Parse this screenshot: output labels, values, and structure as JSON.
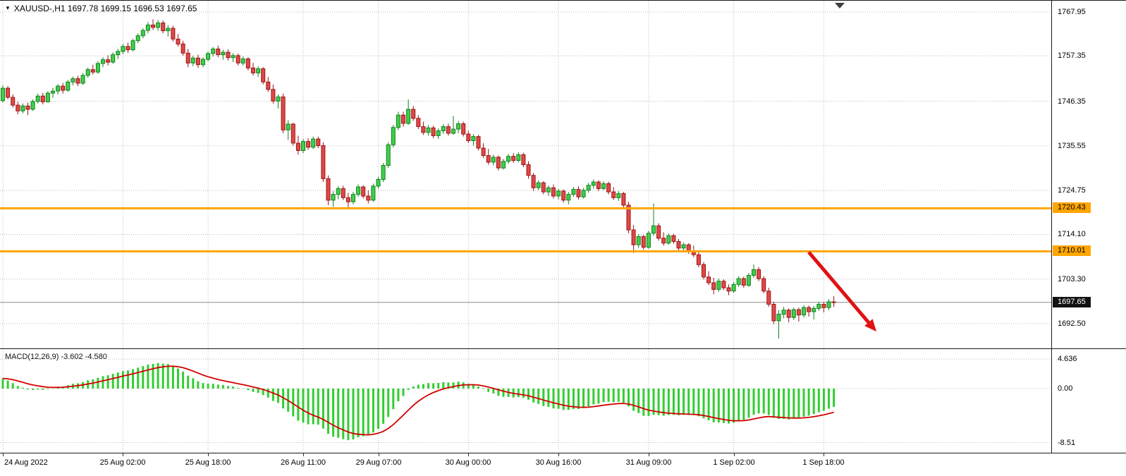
{
  "symbol_bar": {
    "dropdown_icon": "▼",
    "text": "XAUUSD-,H1 1697.78 1699.15 1696.53 1697.65"
  },
  "macd_panel": {
    "label": "MACD(12,26,9) -3.602 -4.580"
  },
  "chart_data": {
    "type": "candlestick",
    "symbol": "XAUUSD-",
    "timeframe": "H1",
    "current_bar": {
      "open": 1697.78,
      "high": 1699.15,
      "low": 1696.53,
      "close": 1697.65
    },
    "price_axis_ticks": [
      1767.95,
      1757.35,
      1746.35,
      1735.55,
      1724.75,
      1714.1,
      1703.3,
      1692.5
    ],
    "price_axis_range": [
      1688.0,
      1771.0
    ],
    "grid": true,
    "horizontal_levels": [
      {
        "price": 1720.43,
        "label": "1720.43",
        "color": "#FFA500"
      },
      {
        "price": 1710.01,
        "label": "1710.01",
        "color": "#FFA500"
      }
    ],
    "current_price_label": {
      "price": 1697.65,
      "label": "1697.65"
    },
    "time_labels": [
      {
        "i": 0,
        "text": "24 Aug 2022"
      },
      {
        "i": 24,
        "text": "25 Aug 02:00"
      },
      {
        "i": 41,
        "text": "25 Aug 18:00"
      },
      {
        "i": 60,
        "text": "26 Aug 11:00"
      },
      {
        "i": 75,
        "text": "29 Aug 07:00"
      },
      {
        "i": 93,
        "text": "30 Aug 00:00"
      },
      {
        "i": 111,
        "text": "30 Aug 16:00"
      },
      {
        "i": 129,
        "text": "31 Aug 09:00"
      },
      {
        "i": 146,
        "text": "1 Sep 02:00"
      },
      {
        "i": 164,
        "text": "1 Sep 18:00"
      }
    ],
    "candles": [
      [
        1746.5,
        1750.2,
        1746.0,
        1749.5
      ],
      [
        1749.5,
        1750.0,
        1746.8,
        1747.3
      ],
      [
        1747.3,
        1748.0,
        1744.8,
        1745.4
      ],
      [
        1745.4,
        1746.2,
        1743.2,
        1744.0
      ],
      [
        1744.0,
        1745.8,
        1743.4,
        1745.2
      ],
      [
        1745.2,
        1746.0,
        1743.0,
        1744.4
      ],
      [
        1744.4,
        1746.8,
        1744.0,
        1746.3
      ],
      [
        1746.3,
        1748.2,
        1745.8,
        1747.6
      ],
      [
        1747.6,
        1748.4,
        1745.6,
        1746.2
      ],
      [
        1746.2,
        1748.8,
        1746.0,
        1748.3
      ],
      [
        1748.3,
        1749.6,
        1747.2,
        1748.8
      ],
      [
        1748.8,
        1750.5,
        1748.0,
        1750.0
      ],
      [
        1750.0,
        1750.8,
        1748.2,
        1749.0
      ],
      [
        1749.0,
        1751.5,
        1748.6,
        1751.0
      ],
      [
        1751.0,
        1752.3,
        1750.2,
        1751.8
      ],
      [
        1751.8,
        1752.5,
        1750.0,
        1750.7
      ],
      [
        1750.7,
        1753.2,
        1750.3,
        1752.6
      ],
      [
        1752.6,
        1754.5,
        1752.0,
        1754.0
      ],
      [
        1754.0,
        1755.2,
        1752.8,
        1753.4
      ],
      [
        1753.4,
        1756.0,
        1753.0,
        1755.5
      ],
      [
        1755.5,
        1757.0,
        1754.6,
        1756.4
      ],
      [
        1756.4,
        1757.5,
        1755.0,
        1755.8
      ],
      [
        1755.8,
        1758.2,
        1755.4,
        1757.6
      ],
      [
        1757.6,
        1759.0,
        1756.6,
        1758.4
      ],
      [
        1758.4,
        1760.2,
        1757.8,
        1759.6
      ],
      [
        1759.6,
        1760.5,
        1758.0,
        1758.8
      ],
      [
        1758.8,
        1761.5,
        1758.4,
        1761.0
      ],
      [
        1761.0,
        1762.8,
        1760.4,
        1762.2
      ],
      [
        1762.2,
        1764.0,
        1761.6,
        1763.5
      ],
      [
        1763.5,
        1765.5,
        1762.8,
        1764.8
      ],
      [
        1764.8,
        1766.2,
        1763.6,
        1764.2
      ],
      [
        1764.2,
        1766.0,
        1763.4,
        1765.3
      ],
      [
        1765.3,
        1765.9,
        1762.8,
        1763.4
      ],
      [
        1763.4,
        1764.8,
        1762.0,
        1764.0
      ],
      [
        1764.0,
        1764.6,
        1760.8,
        1761.4
      ],
      [
        1761.4,
        1762.6,
        1759.6,
        1760.2
      ],
      [
        1760.2,
        1761.0,
        1757.4,
        1758.0
      ],
      [
        1758.0,
        1759.0,
        1754.6,
        1755.6
      ],
      [
        1755.6,
        1757.4,
        1754.8,
        1756.8
      ],
      [
        1756.8,
        1757.6,
        1754.4,
        1755.2
      ],
      [
        1755.2,
        1757.0,
        1754.6,
        1756.5
      ],
      [
        1756.5,
        1758.4,
        1756.0,
        1757.9
      ],
      [
        1757.9,
        1759.5,
        1757.2,
        1759.0
      ],
      [
        1759.0,
        1759.8,
        1757.0,
        1757.6
      ],
      [
        1757.6,
        1758.8,
        1756.4,
        1758.2
      ],
      [
        1758.2,
        1758.9,
        1756.2,
        1756.9
      ],
      [
        1756.9,
        1758.0,
        1755.8,
        1757.4
      ],
      [
        1757.4,
        1757.9,
        1755.0,
        1755.6
      ],
      [
        1755.6,
        1757.2,
        1755.0,
        1756.6
      ],
      [
        1756.6,
        1757.0,
        1753.8,
        1754.4
      ],
      [
        1754.4,
        1755.6,
        1752.6,
        1753.2
      ],
      [
        1753.2,
        1754.8,
        1752.2,
        1754.2
      ],
      [
        1754.2,
        1754.6,
        1750.4,
        1751.0
      ],
      [
        1751.0,
        1752.2,
        1748.6,
        1749.2
      ],
      [
        1749.2,
        1750.4,
        1745.8,
        1746.4
      ],
      [
        1746.4,
        1748.0,
        1744.6,
        1747.4
      ],
      [
        1747.4,
        1748.2,
        1738.6,
        1739.4
      ],
      [
        1739.4,
        1741.8,
        1737.0,
        1740.8
      ],
      [
        1740.8,
        1741.2,
        1735.6,
        1736.2
      ],
      [
        1736.2,
        1738.0,
        1733.4,
        1734.4
      ],
      [
        1734.4,
        1737.2,
        1733.8,
        1736.6
      ],
      [
        1736.6,
        1737.4,
        1734.6,
        1735.2
      ],
      [
        1735.2,
        1737.8,
        1734.8,
        1737.2
      ],
      [
        1737.2,
        1737.8,
        1735.0,
        1735.6
      ],
      [
        1735.6,
        1736.4,
        1726.8,
        1727.6
      ],
      [
        1727.6,
        1728.4,
        1721.2,
        1722.4
      ],
      [
        1722.4,
        1724.6,
        1720.8,
        1723.8
      ],
      [
        1723.8,
        1725.8,
        1722.6,
        1725.2
      ],
      [
        1725.2,
        1725.9,
        1722.4,
        1723.0
      ],
      [
        1723.0,
        1724.2,
        1720.6,
        1722.0
      ],
      [
        1722.0,
        1724.4,
        1721.4,
        1723.8
      ],
      [
        1723.8,
        1726.2,
        1723.2,
        1725.6
      ],
      [
        1725.6,
        1726.0,
        1722.8,
        1723.4
      ],
      [
        1723.4,
        1724.8,
        1721.6,
        1722.4
      ],
      [
        1722.4,
        1726.4,
        1722.0,
        1725.8
      ],
      [
        1725.8,
        1728.0,
        1725.2,
        1727.4
      ],
      [
        1727.4,
        1731.4,
        1726.8,
        1730.8
      ],
      [
        1730.8,
        1736.4,
        1730.2,
        1735.8
      ],
      [
        1735.8,
        1740.6,
        1735.2,
        1740.0
      ],
      [
        1740.0,
        1743.8,
        1739.4,
        1743.0
      ],
      [
        1743.0,
        1743.8,
        1740.2,
        1741.0
      ],
      [
        1741.0,
        1746.8,
        1740.6,
        1744.4
      ],
      [
        1744.4,
        1745.2,
        1741.6,
        1742.2
      ],
      [
        1742.2,
        1743.0,
        1739.6,
        1740.2
      ],
      [
        1740.2,
        1741.4,
        1738.2,
        1738.8
      ],
      [
        1738.8,
        1740.6,
        1738.0,
        1739.9
      ],
      [
        1739.9,
        1740.4,
        1737.4,
        1738.0
      ],
      [
        1738.0,
        1739.8,
        1737.2,
        1739.2
      ],
      [
        1739.2,
        1740.8,
        1738.4,
        1740.2
      ],
      [
        1740.2,
        1740.9,
        1738.0,
        1738.6
      ],
      [
        1738.6,
        1742.8,
        1738.2,
        1739.6
      ],
      [
        1739.6,
        1741.6,
        1738.6,
        1740.9
      ],
      [
        1740.9,
        1741.4,
        1737.8,
        1738.4
      ],
      [
        1738.4,
        1739.2,
        1736.2,
        1736.8
      ],
      [
        1736.8,
        1738.4,
        1735.6,
        1737.8
      ],
      [
        1737.8,
        1738.2,
        1734.4,
        1735.0
      ],
      [
        1735.0,
        1736.2,
        1732.6,
        1733.2
      ],
      [
        1733.2,
        1734.8,
        1731.0,
        1731.6
      ],
      [
        1731.6,
        1733.4,
        1730.8,
        1732.8
      ],
      [
        1732.8,
        1733.2,
        1729.6,
        1730.2
      ],
      [
        1730.2,
        1732.4,
        1729.8,
        1731.8
      ],
      [
        1731.8,
        1733.6,
        1731.2,
        1733.0
      ],
      [
        1733.0,
        1733.8,
        1731.4,
        1732.0
      ],
      [
        1732.0,
        1734.0,
        1731.6,
        1733.4
      ],
      [
        1733.4,
        1733.9,
        1730.4,
        1731.0
      ],
      [
        1731.0,
        1731.8,
        1727.6,
        1728.4
      ],
      [
        1728.4,
        1729.0,
        1724.6,
        1725.4
      ],
      [
        1725.4,
        1727.2,
        1724.8,
        1726.6
      ],
      [
        1726.6,
        1727.0,
        1723.8,
        1724.4
      ],
      [
        1724.4,
        1726.0,
        1723.4,
        1725.4
      ],
      [
        1725.4,
        1726.2,
        1722.8,
        1723.4
      ],
      [
        1723.4,
        1725.2,
        1722.6,
        1724.6
      ],
      [
        1724.6,
        1725.0,
        1721.8,
        1722.4
      ],
      [
        1722.4,
        1724.4,
        1721.4,
        1723.8
      ],
      [
        1723.8,
        1725.6,
        1723.2,
        1725.0
      ],
      [
        1725.0,
        1725.8,
        1722.6,
        1723.2
      ],
      [
        1723.2,
        1725.4,
        1722.8,
        1724.8
      ],
      [
        1724.8,
        1726.6,
        1724.2,
        1726.0
      ],
      [
        1726.0,
        1727.4,
        1725.2,
        1726.8
      ],
      [
        1726.8,
        1727.2,
        1724.6,
        1725.2
      ],
      [
        1725.2,
        1727.0,
        1724.8,
        1726.4
      ],
      [
        1726.4,
        1726.9,
        1723.8,
        1724.4
      ],
      [
        1724.4,
        1725.6,
        1722.4,
        1723.0
      ],
      [
        1723.0,
        1724.6,
        1722.2,
        1724.0
      ],
      [
        1724.0,
        1724.4,
        1720.6,
        1721.2
      ],
      [
        1721.2,
        1722.0,
        1714.4,
        1715.2
      ],
      [
        1715.2,
        1716.4,
        1709.6,
        1711.6
      ],
      [
        1711.6,
        1714.2,
        1710.8,
        1713.6
      ],
      [
        1713.6,
        1714.0,
        1710.4,
        1711.0
      ],
      [
        1711.0,
        1715.0,
        1710.6,
        1714.4
      ],
      [
        1714.4,
        1721.6,
        1713.8,
        1716.2
      ],
      [
        1716.2,
        1716.8,
        1712.6,
        1713.2
      ],
      [
        1713.2,
        1714.6,
        1711.4,
        1712.0
      ],
      [
        1712.0,
        1714.4,
        1711.6,
        1713.8
      ],
      [
        1713.8,
        1714.2,
        1711.8,
        1712.4
      ],
      [
        1712.4,
        1713.0,
        1710.2,
        1710.8
      ],
      [
        1710.8,
        1712.2,
        1709.8,
        1711.6
      ],
      [
        1711.6,
        1712.0,
        1709.4,
        1710.0
      ],
      [
        1710.0,
        1711.4,
        1708.6,
        1709.2
      ],
      [
        1709.2,
        1709.8,
        1706.2,
        1706.8
      ],
      [
        1706.8,
        1707.4,
        1703.2,
        1703.8
      ],
      [
        1703.8,
        1705.2,
        1701.8,
        1702.4
      ],
      [
        1702.4,
        1703.6,
        1699.6,
        1700.8
      ],
      [
        1700.8,
        1703.4,
        1700.2,
        1702.8
      ],
      [
        1702.8,
        1703.2,
        1700.6,
        1701.2
      ],
      [
        1701.2,
        1702.0,
        1699.4,
        1700.4
      ],
      [
        1700.4,
        1702.6,
        1700.0,
        1702.0
      ],
      [
        1702.0,
        1704.0,
        1701.4,
        1703.4
      ],
      [
        1703.4,
        1703.9,
        1701.2,
        1701.8
      ],
      [
        1701.8,
        1704.8,
        1701.4,
        1704.2
      ],
      [
        1704.2,
        1706.8,
        1703.6,
        1705.6
      ],
      [
        1705.6,
        1706.2,
        1702.8,
        1703.4
      ],
      [
        1703.4,
        1704.0,
        1699.8,
        1700.4
      ],
      [
        1700.4,
        1701.2,
        1696.6,
        1697.2
      ],
      [
        1697.2,
        1697.8,
        1692.4,
        1693.2
      ],
      [
        1693.2,
        1695.8,
        1688.9,
        1694.8
      ],
      [
        1694.8,
        1696.6,
        1693.8,
        1695.8
      ],
      [
        1695.8,
        1696.2,
        1692.8,
        1694.0
      ],
      [
        1694.0,
        1696.4,
        1693.4,
        1695.9
      ],
      [
        1695.9,
        1696.4,
        1693.0,
        1694.6
      ],
      [
        1694.6,
        1697.0,
        1694.0,
        1696.4
      ],
      [
        1696.4,
        1696.9,
        1694.2,
        1695.4
      ],
      [
        1695.4,
        1696.8,
        1693.5,
        1696.2
      ],
      [
        1696.2,
        1697.8,
        1695.6,
        1697.2
      ],
      [
        1697.2,
        1697.7,
        1695.2,
        1696.4
      ],
      [
        1696.4,
        1698.4,
        1695.8,
        1697.8
      ],
      [
        1697.78,
        1699.15,
        1696.53,
        1697.65
      ]
    ],
    "indicator": {
      "name": "MACD",
      "params": [
        12,
        26,
        9
      ],
      "current_macd": -3.602,
      "current_signal": -4.58,
      "axis_ticks": [
        4.636,
        0,
        -8.51
      ],
      "axis_tick_labels": [
        "4.636",
        "0.00",
        "-8.51"
      ]
    },
    "arrow_annotation": {
      "from": {
        "i": 161,
        "price": 1709.8
      },
      "to": {
        "i": 174.5,
        "price": 1690.6
      },
      "color": "#e01212"
    },
    "colors": {
      "up": "#3ecf49",
      "up_border": "#13801f",
      "down": "#e04848",
      "down_border": "#9c1414",
      "grid": "#bbbbbb",
      "level_line": "#FFA500",
      "histogram": "#32CD32",
      "signal": "#d40000",
      "price_line": "#8c8c8c",
      "axis_text": "#000000",
      "level_tag_bg": "#FFA500",
      "current_tag_bg": "#111111"
    }
  }
}
